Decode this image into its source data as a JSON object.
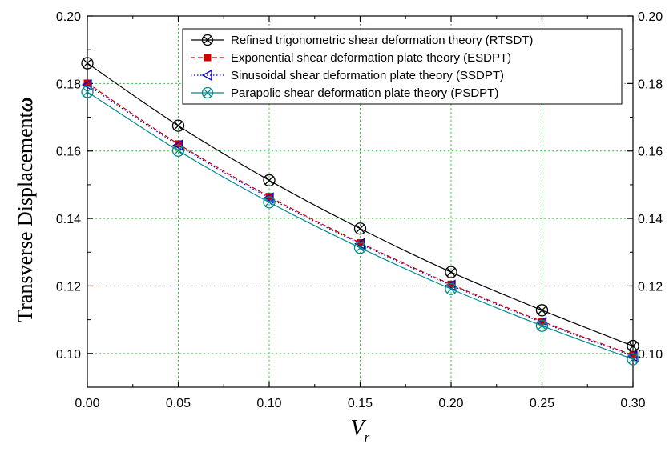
{
  "chart_data": {
    "type": "line",
    "xlabel": "V",
    "xlabel_subscript": "r",
    "ylabel": "Transverse Displacement",
    "ylabel_symbol": "ω",
    "xlim": [
      0.0,
      0.3
    ],
    "ylim": [
      0.09,
      0.2
    ],
    "xticks": [
      "0.00",
      "0.05",
      "0.10",
      "0.15",
      "0.20",
      "0.25",
      "0.30"
    ],
    "yticks": [
      "0.10",
      "0.12",
      "0.14",
      "0.16",
      "0.18",
      "0.20"
    ],
    "grid": true,
    "legend_position": "top-right",
    "x": [
      0.0,
      0.05,
      0.1,
      0.15,
      0.2,
      0.25,
      0.3
    ],
    "series": [
      {
        "name": "Refined trigonometric shear deformation theory (RTSDT)",
        "values": [
          0.186,
          0.1675,
          0.1513,
          0.137,
          0.1241,
          0.1128,
          0.1022
        ],
        "color": "#000000",
        "marker": "circle-x",
        "dash": "solid"
      },
      {
        "name": "Exponential shear deformation plate theory (ESDPT)",
        "values": [
          0.1801,
          0.1621,
          0.1465,
          0.1328,
          0.1205,
          0.1095,
          0.0995
        ],
        "color": "#d40000",
        "marker": "square",
        "dash": "dashed"
      },
      {
        "name": "Sinusoidal shear deformation plate theory (SSDPT)",
        "values": [
          0.1796,
          0.1617,
          0.1461,
          0.1325,
          0.1202,
          0.1092,
          0.0992
        ],
        "color": "#0000cc",
        "marker": "triangle-left",
        "dash": "dotted"
      },
      {
        "name": "Parapolic shear deformation plate theory (PSDPT)",
        "values": [
          0.1775,
          0.1601,
          0.1448,
          0.1313,
          0.1191,
          0.1082,
          0.0983
        ],
        "color": "#008b8b",
        "marker": "circle-x",
        "dash": "solid"
      }
    ]
  }
}
